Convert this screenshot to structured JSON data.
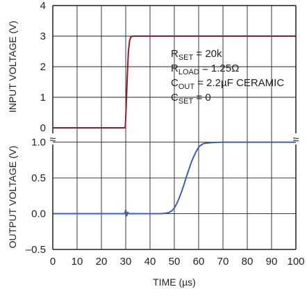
{
  "chart_data": {
    "type": "line",
    "xlabel": "TIME (µs)",
    "xlim": [
      0,
      100
    ],
    "x_ticks": [
      "0",
      "10",
      "20",
      "30",
      "40",
      "50",
      "60",
      "70",
      "80",
      "90",
      "100"
    ],
    "grid": true,
    "panels": [
      {
        "id": "input",
        "ylabel": "INPUT VOLTAGE (V)",
        "ylim": [
          0,
          4
        ],
        "y_ticks": [
          "0",
          "1",
          "2",
          "3",
          "4"
        ],
        "series": [
          {
            "color": "#8c1d2a",
            "x": [
              0,
              29.8,
              30.1,
              30.6,
              31.1,
              31.6,
              32.1,
              32.8,
              40,
              50,
              60,
              70,
              80,
              90,
              100
            ],
            "y": [
              0,
              0,
              0.5,
              1.6,
              2.5,
              2.85,
              2.97,
              3.0,
              3.0,
              3.0,
              3.0,
              3.0,
              3.0,
              3.0,
              3.0
            ]
          }
        ]
      },
      {
        "id": "output",
        "ylabel": "OUTPUT VOLTAGE (V)",
        "ylim": [
          -0.5,
          1.2
        ],
        "y_ticks": [
          "–0.5",
          "0.0",
          "0.5",
          "1.0"
        ],
        "series": [
          {
            "color": "#3d5fad",
            "x": [
              0,
              10,
              20,
              29.6,
              30.0,
              30.4,
              30.8,
              31.2,
              35,
              40,
              45,
              47,
              48,
              49,
              50,
              51,
              52,
              53,
              54,
              55,
              56,
              57,
              58,
              59,
              60,
              61,
              62,
              64,
              66,
              70,
              80,
              90,
              100
            ],
            "y": [
              0,
              0,
              0,
              0,
              0.05,
              -0.03,
              0.02,
              0,
              0,
              0,
              0,
              0.01,
              0.02,
              0.04,
              0.08,
              0.14,
              0.22,
              0.31,
              0.41,
              0.52,
              0.62,
              0.72,
              0.8,
              0.87,
              0.93,
              0.96,
              0.98,
              0.99,
              0.995,
              1.0,
              1.0,
              1.0,
              1.0
            ]
          }
        ]
      }
    ],
    "annotations": [
      {
        "base": "R",
        "sub": "SET",
        "rest": " = 20k"
      },
      {
        "base": "R",
        "sub": "LOAD",
        "rest": " = 1.25Ω"
      },
      {
        "base": "C",
        "sub": "OUT",
        "rest": " = 2.2µF CERAMIC"
      },
      {
        "base": "C",
        "sub": "SET",
        "rest": " = 0"
      }
    ],
    "axis_break": "≈"
  },
  "colors": {
    "grid": "#231f20",
    "frame": "#231f20",
    "text": "#231f20",
    "input_trace": "#8c1d2a",
    "output_trace": "#3d5fad"
  }
}
